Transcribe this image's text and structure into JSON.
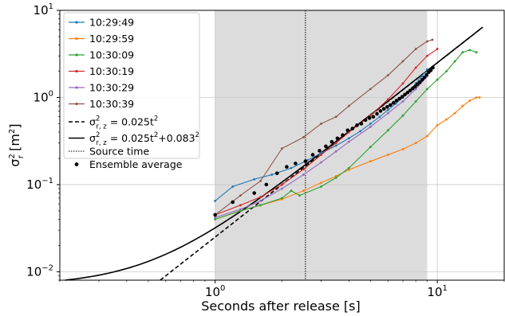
{
  "chart_data": {
    "type": "line",
    "xscale": "log",
    "yscale": "log",
    "xlim": [
      0.2,
      20
    ],
    "ylim": [
      0.008,
      10
    ],
    "grid": true,
    "xlabel": "Seconds after release [s]",
    "ylabel": "σr² [m²]",
    "xtick_labels": [
      {
        "value": 1,
        "base": "10",
        "exp": "0"
      },
      {
        "value": 10,
        "base": "10",
        "exp": "1"
      }
    ],
    "ytick_labels": [
      {
        "value": 0.01,
        "base": "10",
        "exp": "−2"
      },
      {
        "value": 0.1,
        "base": "10",
        "exp": "−1"
      },
      {
        "value": 1,
        "base": "10",
        "exp": "0"
      },
      {
        "value": 10,
        "base": "10",
        "exp": "1"
      }
    ],
    "shaded_region": {
      "x": [
        1.0,
        9.0
      ],
      "color": "#dcdcdc"
    },
    "source_time": {
      "x": 2.55,
      "name": "Source time"
    },
    "legend_position": "top-left",
    "series": [
      {
        "name": "10:29:49",
        "color": "#1f77b4",
        "marker": "dot",
        "x": [
          1.0,
          1.2,
          1.5,
          1.8,
          2.2,
          2.6,
          3.0,
          3.5,
          4.0,
          4.5,
          5.0,
          5.5,
          6.0,
          6.5,
          7.0,
          7.5,
          8.0,
          8.5,
          9.0
        ],
        "y": [
          0.065,
          0.095,
          0.115,
          0.13,
          0.155,
          0.19,
          0.23,
          0.28,
          0.34,
          0.41,
          0.5,
          0.6,
          0.72,
          0.85,
          1.0,
          1.2,
          1.45,
          1.75,
          2.1
        ]
      },
      {
        "name": "10:29:59",
        "color": "#ff7f0e",
        "marker": "dot",
        "x": [
          1.0,
          1.3,
          1.6,
          2.0,
          2.5,
          3.0,
          3.5,
          4.0,
          5.0,
          6.0,
          7.0,
          8.0,
          9.0,
          10.0,
          11.0,
          12.0,
          13.0,
          14.0,
          15.0,
          15.5
        ],
        "y": [
          0.04,
          0.05,
          0.058,
          0.068,
          0.085,
          0.105,
          0.125,
          0.148,
          0.185,
          0.22,
          0.255,
          0.3,
          0.36,
          0.48,
          0.56,
          0.66,
          0.8,
          0.92,
          1.0,
          1.0
        ]
      },
      {
        "name": "10:30:09",
        "color": "#2ca02c",
        "marker": "dot",
        "x": [
          1.0,
          1.3,
          1.6,
          2.0,
          2.2,
          2.4,
          3.0,
          3.5,
          4.0,
          5.0,
          6.0,
          7.0,
          8.0,
          9.0,
          10.0,
          11.0,
          12.0,
          13.0,
          14.0,
          15.0
        ],
        "y": [
          0.04,
          0.05,
          0.058,
          0.07,
          0.085,
          0.075,
          0.095,
          0.12,
          0.155,
          0.27,
          0.42,
          0.62,
          0.9,
          1.25,
          1.6,
          2.0,
          2.6,
          3.3,
          3.5,
          3.3
        ]
      },
      {
        "name": "10:30:19",
        "color": "#d62728",
        "marker": "dot",
        "x": [
          1.0,
          1.3,
          1.6,
          2.0,
          2.5,
          3.0,
          3.5,
          4.0,
          5.0,
          6.0,
          7.0,
          8.0,
          9.0,
          10.0
        ],
        "y": [
          0.045,
          0.058,
          0.072,
          0.1,
          0.15,
          0.22,
          0.3,
          0.4,
          0.62,
          0.95,
          1.45,
          2.2,
          3.0,
          3.6
        ]
      },
      {
        "name": "10:30:29",
        "color": "#9467bd",
        "marker": "dot",
        "x": [
          1.0,
          1.3,
          1.6,
          2.0,
          2.5,
          3.0,
          3.5,
          4.0,
          5.0,
          6.0,
          7.0,
          8.0,
          9.0
        ],
        "y": [
          0.042,
          0.052,
          0.065,
          0.09,
          0.13,
          0.18,
          0.24,
          0.31,
          0.46,
          0.66,
          0.9,
          1.25,
          1.75
        ]
      },
      {
        "name": "10:30:39",
        "color": "#8c564b",
        "marker": "dot",
        "x": [
          1.0,
          1.3,
          1.6,
          2.0,
          2.5,
          3.0,
          3.5,
          4.0,
          5.0,
          6.0,
          7.0,
          8.0,
          9.0,
          9.5
        ],
        "y": [
          0.045,
          0.075,
          0.11,
          0.26,
          0.35,
          0.5,
          0.6,
          0.8,
          1.25,
          1.8,
          2.6,
          3.6,
          4.4,
          4.6
        ]
      }
    ],
    "fits": [
      {
        "name": "σ²r,z = 0.025t²",
        "style": "dashed",
        "color": "#000000",
        "formula": {
          "a": 0.025,
          "c": 0
        },
        "label_base": "σ",
        "label_sup": "2",
        "label_sub": "r, z",
        "label_rest": " = 0.025t",
        "label_rest_sup": "2",
        "label_extra": "",
        "label_extra_sup": ""
      },
      {
        "name": "σ²r,z = 0.025t²+0.083²",
        "style": "solid",
        "color": "#000000",
        "formula": {
          "a": 0.025,
          "c": 0.006889
        },
        "label_base": "σ",
        "label_sup": "2",
        "label_sub": "r, z",
        "label_rest": " = 0.025t",
        "label_rest_sup": "2",
        "label_extra": "+0.083",
        "label_extra_sup": "2"
      }
    ],
    "ensemble_average": {
      "name": "Ensemble average",
      "x": [
        1.0,
        1.2,
        1.5,
        1.7,
        1.9,
        2.1,
        2.3,
        2.55,
        2.75,
        2.95,
        3.15,
        3.35,
        3.55,
        3.75,
        3.95,
        4.15,
        4.35,
        4.55,
        4.75,
        4.95,
        5.15,
        5.35,
        5.55,
        5.75,
        5.95,
        6.15,
        6.35,
        6.55,
        6.75,
        6.95,
        7.15,
        7.35,
        7.55,
        7.75,
        7.95,
        8.15,
        8.35,
        8.55,
        8.75,
        8.95,
        9.15,
        9.35,
        9.55
      ],
      "y": [
        0.045,
        0.063,
        0.08,
        0.1,
        0.135,
        0.16,
        0.175,
        0.185,
        0.22,
        0.245,
        0.275,
        0.31,
        0.34,
        0.37,
        0.42,
        0.44,
        0.48,
        0.5,
        0.55,
        0.58,
        0.6,
        0.65,
        0.7,
        0.74,
        0.78,
        0.82,
        0.87,
        0.92,
        0.97,
        1.02,
        1.08,
        1.14,
        1.2,
        1.27,
        1.34,
        1.42,
        1.5,
        1.6,
        1.7,
        1.82,
        1.95,
        2.05,
        2.2
      ]
    }
  }
}
